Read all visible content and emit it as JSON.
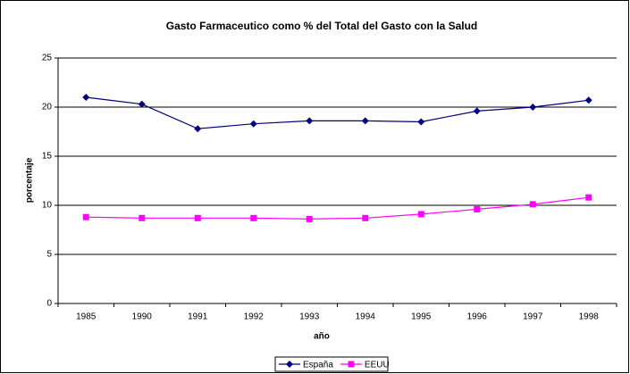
{
  "chart_data": {
    "type": "line",
    "title": "Gasto Farmaceutico como % del Total del Gasto con la Salud",
    "x_label": "año",
    "y_label": "porcentaje",
    "categories": [
      "1985",
      "1990",
      "1991",
      "1992",
      "1993",
      "1994",
      "1995",
      "1996",
      "1997",
      "1998"
    ],
    "series": [
      {
        "name": "España",
        "color": "#000080",
        "marker": "diamond",
        "values": [
          21.0,
          20.3,
          17.8,
          18.3,
          18.6,
          18.6,
          18.5,
          19.6,
          20.0,
          20.7
        ]
      },
      {
        "name": "EEUU",
        "color": "#ff00ff",
        "marker": "square",
        "values": [
          8.8,
          8.7,
          8.7,
          8.7,
          8.6,
          8.7,
          9.1,
          9.6,
          10.1,
          10.8
        ]
      }
    ],
    "ylim": [
      0,
      25
    ],
    "yticks": [
      0,
      5,
      10,
      15,
      20,
      25
    ],
    "grid": true,
    "legend": "bottom"
  }
}
